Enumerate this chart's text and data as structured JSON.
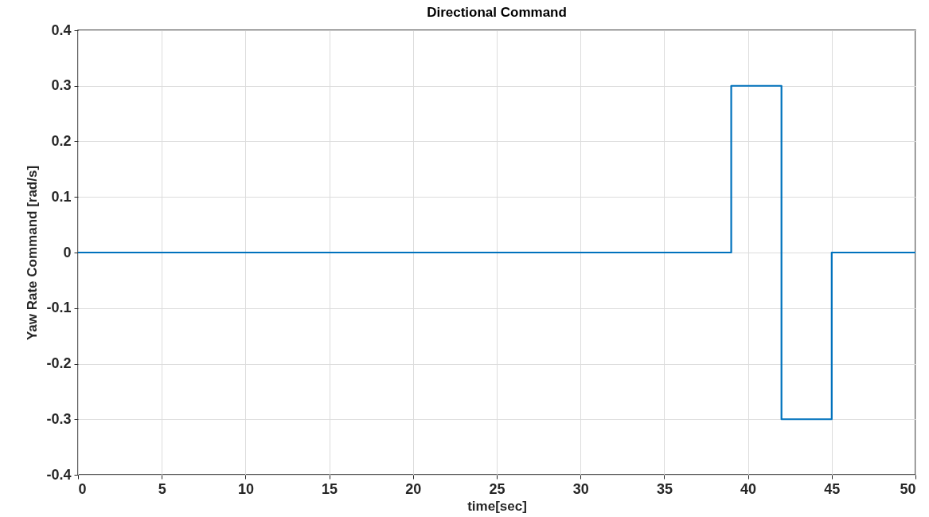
{
  "chart_data": {
    "type": "step",
    "title": "Directional Command",
    "xlabel": "time[sec]",
    "ylabel": "Yaw Rate Command [rad/s]",
    "x": [
      0,
      39,
      42,
      45,
      50
    ],
    "values": [
      0,
      0.3,
      -0.3,
      0,
      0
    ],
    "color": "#0072bd",
    "xlim": [
      0,
      50
    ],
    "ylim": [
      -0.4,
      0.4
    ],
    "xticks": [
      0,
      5,
      10,
      15,
      20,
      25,
      30,
      35,
      40,
      45,
      50
    ],
    "yticks": [
      -0.4,
      -0.3,
      -0.2,
      -0.1,
      0,
      0.1,
      0.2,
      0.3,
      0.4
    ],
    "grid": true
  }
}
